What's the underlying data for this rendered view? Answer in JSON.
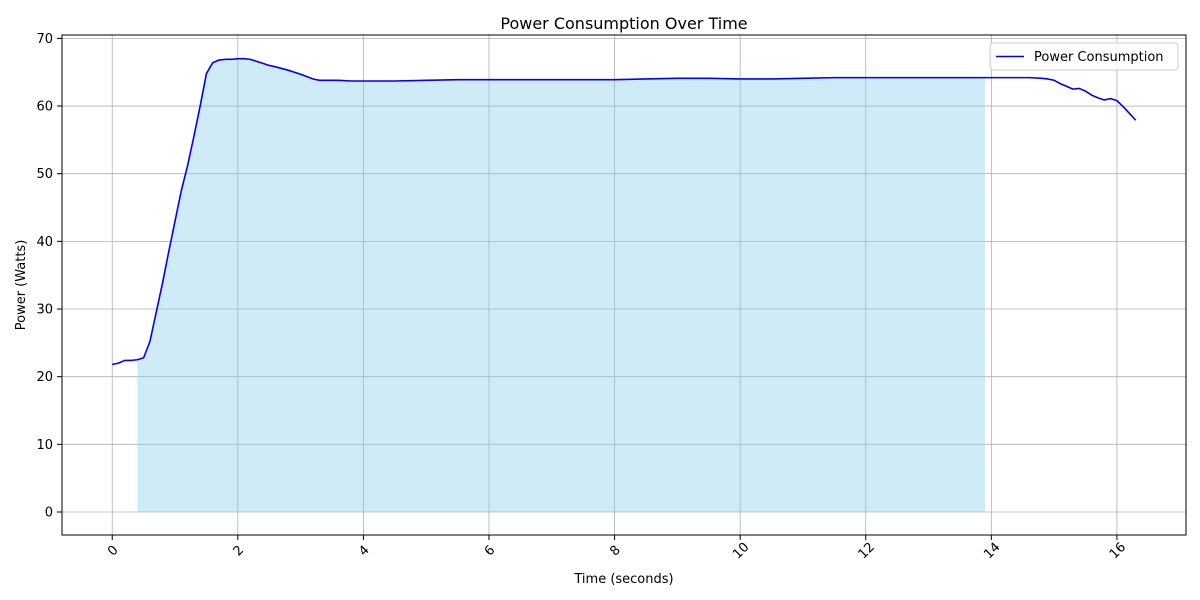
{
  "chart_data": {
    "type": "line",
    "title": "Power Consumption Over Time",
    "xlabel": "Time (seconds)",
    "ylabel": "Power (Watts)",
    "xlim": [
      -0.8,
      17.1
    ],
    "ylim": [
      -3.4,
      70.5
    ],
    "xticks": [
      0,
      2,
      4,
      6,
      8,
      10,
      12,
      14,
      16
    ],
    "yticks": [
      0,
      10,
      20,
      30,
      40,
      50,
      60,
      70
    ],
    "grid": true,
    "legend_position": "top-right",
    "series": [
      {
        "name": "Power Consumption",
        "color": "#0000ff",
        "x": [
          0.0,
          0.1,
          0.2,
          0.3,
          0.4,
          0.5,
          0.6,
          0.7,
          0.8,
          0.9,
          1.0,
          1.1,
          1.2,
          1.3,
          1.4,
          1.5,
          1.6,
          1.7,
          1.8,
          1.9,
          2.0,
          2.1,
          2.2,
          2.3,
          2.4,
          2.5,
          2.6,
          2.8,
          3.0,
          3.2,
          3.3,
          3.4,
          3.6,
          3.8,
          4.0,
          4.5,
          5.0,
          5.5,
          6.0,
          6.5,
          7.0,
          7.5,
          8.0,
          8.5,
          9.0,
          9.5,
          10.0,
          10.5,
          11.0,
          11.5,
          12.0,
          12.5,
          13.0,
          13.5,
          14.0,
          14.3,
          14.6,
          14.8,
          14.9,
          15.0,
          15.1,
          15.2,
          15.3,
          15.4,
          15.5,
          15.6,
          15.7,
          15.8,
          15.9,
          16.0,
          16.1,
          16.2,
          16.3
        ],
        "y": [
          21.8,
          22.0,
          22.4,
          22.4,
          22.5,
          22.8,
          25.2,
          29.5,
          33.8,
          38.5,
          43.0,
          47.5,
          51.2,
          55.5,
          60.0,
          64.8,
          66.4,
          66.8,
          66.9,
          66.9,
          67.0,
          67.0,
          66.9,
          66.6,
          66.3,
          66.0,
          65.8,
          65.3,
          64.7,
          64.0,
          63.8,
          63.8,
          63.8,
          63.7,
          63.7,
          63.7,
          63.8,
          63.9,
          63.9,
          63.9,
          63.9,
          63.9,
          63.9,
          64.0,
          64.1,
          64.1,
          64.0,
          64.0,
          64.1,
          64.2,
          64.2,
          64.2,
          64.2,
          64.2,
          64.2,
          64.2,
          64.2,
          64.1,
          64.0,
          63.8,
          63.3,
          62.9,
          62.5,
          62.6,
          62.2,
          61.6,
          61.2,
          60.9,
          61.1,
          60.8,
          59.9,
          58.9,
          57.9
        ]
      }
    ],
    "shaded_region": {
      "x_start": 0.4,
      "x_end": 13.9,
      "color": "#87ceeb"
    }
  }
}
